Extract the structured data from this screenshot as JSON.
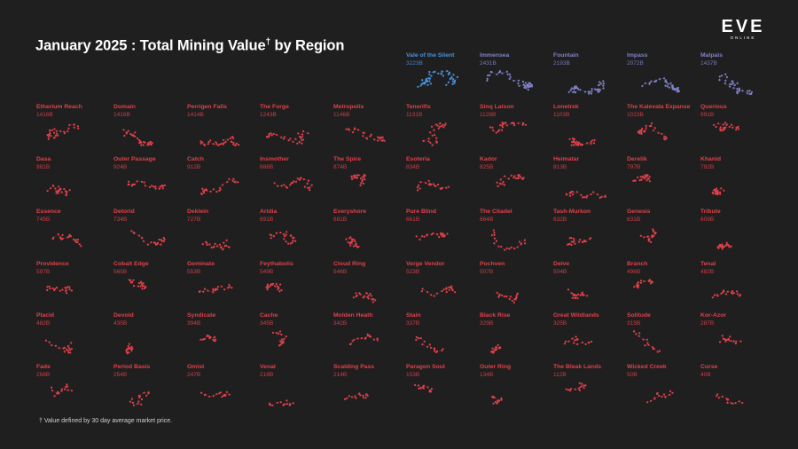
{
  "title": {
    "main": "January 2025 : Total Mining Value",
    "dagger": "†",
    "suffix": " by Region"
  },
  "logo": {
    "main": "EVE",
    "sub": "ONLINE"
  },
  "footnote": "† Value defined by 30 day average market price.",
  "colors": {
    "background": "#1f1f1f",
    "high": "#4a90d9",
    "mid": "#8080c8",
    "low": "#e0404a"
  },
  "chart_data": {
    "type": "bar",
    "title": "January 2025 : Total Mining Value† by Region",
    "unit": "B",
    "categories": [
      "Vale of the Silent",
      "Immensea",
      "Fountain",
      "Impass",
      "Malpais",
      "Etherium Reach",
      "Domain",
      "Perrigen Falls",
      "The Forge",
      "Metropolis",
      "Tenerifis",
      "Sinq Laison",
      "Lonetrek",
      "The Kalevala Expanse",
      "Querious",
      "Dasa",
      "Outer Passage",
      "Catch",
      "Insmother",
      "The Spire",
      "Esoteria",
      "Kador",
      "Heimatar",
      "Derelik",
      "Khanid",
      "Essence",
      "Detorid",
      "Deklein",
      "Aridia",
      "Everyshore",
      "Pure Blind",
      "The Citadel",
      "Tash-Murkon",
      "Genesis",
      "Tribute",
      "Providence",
      "Cobalt Edge",
      "Geminate",
      "Feythabolis",
      "Cloud Ring",
      "Verge Vendor",
      "Pochven",
      "Delve",
      "Branch",
      "Tenal",
      "Placid",
      "Devoid",
      "Syndicate",
      "Cache",
      "Molden Heath",
      "Stain",
      "Black Rise",
      "Great Wildlands",
      "Solitude",
      "Kor-Azor",
      "Fade",
      "Period Basis",
      "Omist",
      "Venal",
      "Scalding Pass",
      "Paragon Soul",
      "Outer Ring",
      "The Bleak Lands",
      "Wicked Creek",
      "Curse"
    ],
    "values": [
      3223,
      2431,
      2193,
      2072,
      1437,
      1418,
      1416,
      1414,
      1243,
      1146,
      1131,
      1128,
      1103,
      1023,
      991,
      981,
      924,
      912,
      886,
      874,
      834,
      825,
      813,
      797,
      792,
      745,
      734,
      727,
      691,
      681,
      661,
      664,
      632,
      631,
      609,
      597,
      565,
      553,
      549,
      546,
      523,
      507,
      504,
      496,
      482,
      482,
      435,
      394,
      345,
      342,
      337,
      329,
      325,
      315,
      287,
      268,
      254,
      247,
      218,
      214,
      153,
      134,
      112,
      50,
      40
    ],
    "value_labels": [
      "3223B",
      "2431B",
      "2193B",
      "2072B",
      "1437B",
      "1418B",
      "1416B",
      "1414B",
      "1243B",
      "1146B",
      "1131B",
      "1128B",
      "1103B",
      "1023B",
      "991B",
      "981B",
      "924B",
      "912B",
      "886B",
      "874B",
      "834B",
      "825B",
      "813B",
      "797B",
      "792B",
      "745B",
      "734B",
      "727B",
      "691B",
      "681B",
      "661B",
      "664B",
      "632B",
      "631B",
      "609B",
      "597B",
      "565B",
      "553B",
      "549B",
      "546B",
      "523B",
      "507B",
      "504B",
      "496B",
      "482B",
      "482B",
      "435B",
      "394B",
      "345B",
      "342B",
      "337B",
      "329B",
      "325B",
      "315B",
      "287B",
      "268B",
      "254B",
      "247B",
      "218B",
      "214B",
      "153B",
      "134B",
      "112B",
      "50B",
      "40B"
    ]
  }
}
